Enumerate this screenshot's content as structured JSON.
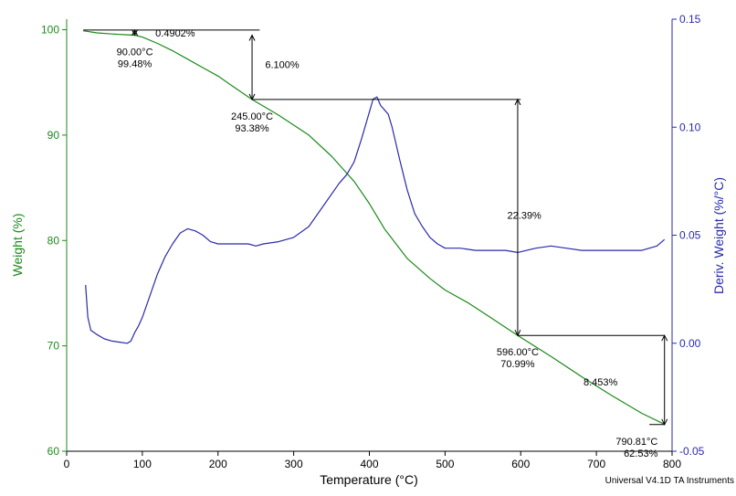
{
  "chart_data": {
    "type": "line",
    "xlabel": "Temperature (°C)",
    "ylabel_left": "Weight (%)",
    "ylabel_right": "Deriv. Weight (%/°C)",
    "xlim": [
      0,
      800
    ],
    "ylim_left": [
      60,
      101
    ],
    "ylim_right": [
      -0.05,
      0.15
    ],
    "xticks": [
      0,
      100,
      200,
      300,
      400,
      500,
      600,
      700,
      800
    ],
    "yticks_left": [
      60,
      70,
      80,
      90,
      100
    ],
    "yticks_right": [
      -0.05,
      0.0,
      0.05,
      0.1,
      0.15
    ],
    "ytick_labels_right": [
      "-0.05",
      "0.00",
      "0.05",
      "0.10",
      "0.15"
    ],
    "grid": false,
    "colors": {
      "weight": "#1a8a1a",
      "deriv": "#2a2aaa",
      "annotation": "#000000"
    },
    "series": [
      {
        "axis": "left",
        "x": [
          22,
          40,
          60,
          80,
          90,
          100,
          120,
          140,
          160,
          180,
          200,
          220,
          245,
          280,
          320,
          350,
          380,
          400,
          420,
          450,
          480,
          500,
          530,
          560,
          596,
          640,
          680,
          720,
          760,
          790.81
        ],
        "y": [
          99.9,
          99.7,
          99.6,
          99.52,
          99.48,
          99.3,
          98.7,
          98.0,
          97.2,
          96.4,
          95.6,
          94.6,
          93.38,
          91.9,
          90.0,
          88.0,
          85.6,
          83.5,
          81.1,
          78.3,
          76.4,
          75.3,
          74.1,
          72.7,
          70.99,
          69.0,
          67.1,
          65.3,
          63.6,
          62.53
        ]
      },
      {
        "axis": "right",
        "x": [
          25,
          28,
          32,
          36,
          40,
          50,
          60,
          70,
          80,
          85,
          90,
          95,
          100,
          110,
          120,
          130,
          140,
          150,
          160,
          170,
          180,
          190,
          200,
          220,
          240,
          250,
          260,
          280,
          300,
          320,
          340,
          360,
          370,
          380,
          390,
          400,
          405,
          410,
          415,
          420,
          425,
          430,
          440,
          450,
          460,
          470,
          480,
          490,
          500,
          520,
          540,
          560,
          580,
          596,
          620,
          640,
          660,
          680,
          700,
          720,
          740,
          760,
          780,
          790
        ],
        "y": [
          0.027,
          0.012,
          0.006,
          0.005,
          0.004,
          0.002,
          0.001,
          0.0005,
          0.0,
          0.001,
          0.005,
          0.008,
          0.012,
          0.022,
          0.032,
          0.04,
          0.046,
          0.051,
          0.053,
          0.052,
          0.05,
          0.047,
          0.046,
          0.046,
          0.046,
          0.045,
          0.046,
          0.047,
          0.049,
          0.054,
          0.064,
          0.074,
          0.078,
          0.084,
          0.095,
          0.107,
          0.113,
          0.114,
          0.11,
          0.108,
          0.106,
          0.1,
          0.085,
          0.071,
          0.06,
          0.054,
          0.049,
          0.046,
          0.044,
          0.044,
          0.043,
          0.043,
          0.043,
          0.042,
          0.044,
          0.045,
          0.044,
          0.043,
          0.043,
          0.043,
          0.043,
          0.043,
          0.045,
          0.048
        ]
      }
    ],
    "annotations": [
      {
        "type": "step_label",
        "text": "0.4902%",
        "x": 110,
        "y": 99.7
      },
      {
        "type": "step_label",
        "text": "6.100%",
        "x": 255,
        "y": 96.7
      },
      {
        "type": "step_label",
        "text": "22.39%",
        "x": 575,
        "y": 82.4
      },
      {
        "type": "step_label",
        "text": "8.453%",
        "x": 740,
        "y": 66.6
      },
      {
        "type": "point_label",
        "lines": [
          "90.00°C",
          "99.48%"
        ],
        "x": 90,
        "y": 99.48
      },
      {
        "type": "point_label",
        "lines": [
          "245.00°C",
          "93.38%"
        ],
        "x": 245,
        "y": 93.38
      },
      {
        "type": "point_label",
        "lines": [
          "596.00°C",
          "70.99%"
        ],
        "x": 596,
        "y": 70.99
      },
      {
        "type": "point_label",
        "lines": [
          "790.81°C",
          "62.53%"
        ],
        "x": 790.81,
        "y": 62.53
      }
    ],
    "step_lines": [
      {
        "from": [
          22,
          99.97
        ],
        "to": [
          255,
          99.97
        ]
      },
      {
        "from": [
          90,
          99.48
        ],
        "to": [
          90,
          99.97
        ]
      },
      {
        "from": [
          245,
          93.38
        ],
        "to": [
          245,
          99.48
        ]
      },
      {
        "from": [
          245,
          93.38
        ],
        "to": [
          600,
          93.38
        ]
      },
      {
        "from": [
          596,
          70.99
        ],
        "to": [
          596,
          93.38
        ]
      },
      {
        "from": [
          596,
          70.99
        ],
        "to": [
          790,
          70.99
        ]
      },
      {
        "from": [
          790,
          62.53
        ],
        "to": [
          790,
          70.99
        ]
      },
      {
        "from": [
          770,
          62.53
        ],
        "to": [
          790,
          62.53
        ]
      }
    ],
    "credit": "Universal V4.1D TA Instruments"
  }
}
